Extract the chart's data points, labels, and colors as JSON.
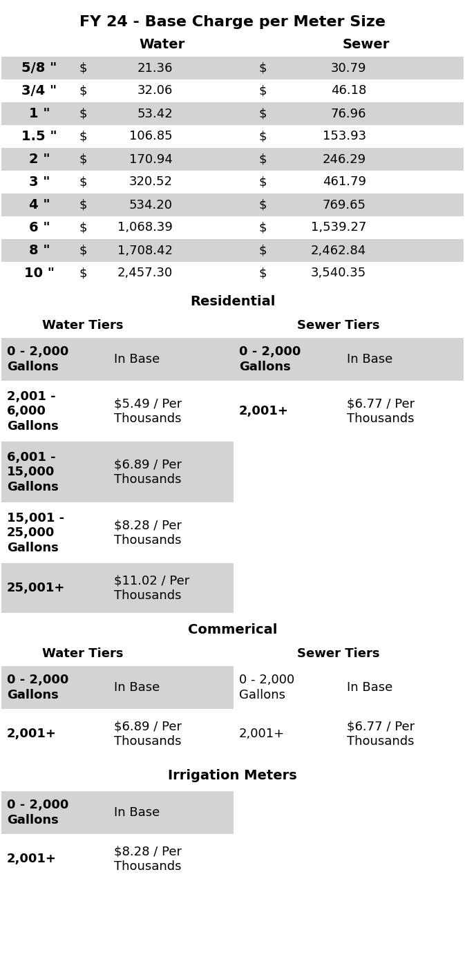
{
  "title": "FY 24 - Base Charge per Meter Size",
  "bg_color": "#ffffff",
  "gray": "#d3d3d3",
  "white": "#ffffff",
  "fig_w": 6.73,
  "fig_h": 13.98,
  "dpi": 100,
  "meter_rows": [
    {
      "size": "5/8 \"",
      "water_dollar": "$",
      "water_val": "21.36",
      "sewer_dollar": "$",
      "sewer_val": "30.79",
      "shaded": true
    },
    {
      "size": "3/4 \"",
      "water_dollar": "$",
      "water_val": "32.06",
      "sewer_dollar": "$",
      "sewer_val": "46.18",
      "shaded": false
    },
    {
      "size": "1 \"",
      "water_dollar": "$",
      "water_val": "53.42",
      "sewer_dollar": "$",
      "sewer_val": "76.96",
      "shaded": true
    },
    {
      "size": "1.5 \"",
      "water_dollar": "$",
      "water_val": "106.85",
      "sewer_dollar": "$",
      "sewer_val": "153.93",
      "shaded": false
    },
    {
      "size": "2 \"",
      "water_dollar": "$",
      "water_val": "170.94",
      "sewer_dollar": "$",
      "sewer_val": "246.29",
      "shaded": true
    },
    {
      "size": "3 \"",
      "water_dollar": "$",
      "water_val": "320.52",
      "sewer_dollar": "$",
      "sewer_val": "461.79",
      "shaded": false
    },
    {
      "size": "4 \"",
      "water_dollar": "$",
      "water_val": "534.20",
      "sewer_dollar": "$",
      "sewer_val": "769.65",
      "shaded": true
    },
    {
      "size": "6 \"",
      "water_dollar": "$",
      "water_val": "1,068.39",
      "sewer_dollar": "$",
      "sewer_val": "1,539.27",
      "shaded": false
    },
    {
      "size": "8 \"",
      "water_dollar": "$",
      "water_val": "1,708.42",
      "sewer_dollar": "$",
      "sewer_val": "2,462.84",
      "shaded": true
    },
    {
      "size": "10 \"",
      "water_dollar": "$",
      "water_val": "2,457.30",
      "sewer_dollar": "$",
      "sewer_val": "3,540.35",
      "shaded": false
    }
  ],
  "residential_water_tiers": [
    {
      "range": "0 - 2,000\nGallons",
      "rate": "In Base",
      "shaded": true,
      "bold_range": true,
      "bold_rate": false
    },
    {
      "range": "2,001 -\n6,000\nGallons",
      "rate": "$5.49 / Per\nThousands",
      "shaded": false,
      "bold_range": true,
      "bold_rate": false
    },
    {
      "range": "6,001 -\n15,000\nGallons",
      "rate": "$6.89 / Per\nThousands",
      "shaded": true,
      "bold_range": true,
      "bold_rate": false
    },
    {
      "range": "15,001 -\n25,000\nGallons",
      "rate": "$8.28 / Per\nThousands",
      "shaded": false,
      "bold_range": true,
      "bold_rate": false
    },
    {
      "range": "25,001+",
      "rate": "$11.02 / Per\nThousands",
      "shaded": true,
      "bold_range": true,
      "bold_rate": false
    }
  ],
  "residential_sewer_tiers": [
    {
      "range": "0 - 2,000\nGallons",
      "rate": "In Base",
      "shaded": true,
      "bold_range": true,
      "bold_rate": false
    },
    {
      "range": "2,001+",
      "rate": "$6.77 / Per\nThousands",
      "shaded": false,
      "bold_range": true,
      "bold_rate": false
    }
  ],
  "commercial_water_tiers": [
    {
      "range": "0 - 2,000\nGallons",
      "rate": "In Base",
      "shaded": true,
      "bold_range": true,
      "bold_rate": false
    },
    {
      "range": "2,001+",
      "rate": "$6.89 / Per\nThousands",
      "shaded": false,
      "bold_range": true,
      "bold_rate": false
    }
  ],
  "commercial_sewer_tiers": [
    {
      "range": "0 - 2,000\nGallons",
      "rate": "In Base",
      "shaded": false,
      "bold_range": false,
      "bold_rate": false
    },
    {
      "range": "2,001+",
      "rate": "$6.77 / Per\nThousands",
      "shaded": false,
      "bold_range": false,
      "bold_rate": false
    }
  ],
  "irrigation_tiers": [
    {
      "range": "0 - 2,000\nGallons",
      "rate": "In Base",
      "shaded": true,
      "bold_range": true,
      "bold_rate": false
    },
    {
      "range": "2,001+",
      "rate": "$8.28 / Per\nThousands",
      "shaded": false,
      "bold_range": true,
      "bold_rate": false
    }
  ]
}
